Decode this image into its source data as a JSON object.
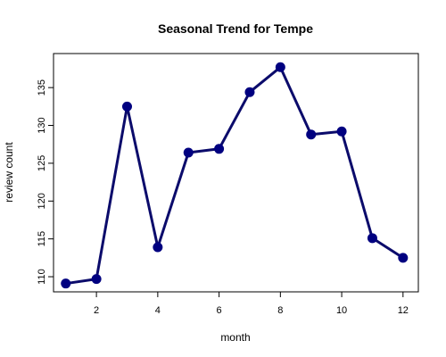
{
  "chart_data": {
    "type": "line",
    "title": "Seasonal Trend for  Tempe",
    "xlabel": "month",
    "ylabel": "review count",
    "x": [
      1,
      2,
      3,
      4,
      5,
      6,
      7,
      8,
      9,
      10,
      11,
      12
    ],
    "series": [
      {
        "values": [
          109.1,
          109.7,
          132.5,
          113.9,
          126.4,
          126.9,
          134.4,
          137.7,
          128.8,
          129.2,
          115.1,
          112.5
        ]
      }
    ],
    "xlim": [
      0.6,
      12.5
    ],
    "ylim": [
      108.0,
      139.5
    ],
    "xticks": [
      2,
      4,
      6,
      8,
      10,
      12
    ],
    "yticks": [
      110,
      115,
      120,
      125,
      130,
      135
    ],
    "grid": false,
    "legend": "none",
    "colors": {
      "line": "#0b0b6b",
      "point": "#000080",
      "axis": "#000000"
    }
  }
}
